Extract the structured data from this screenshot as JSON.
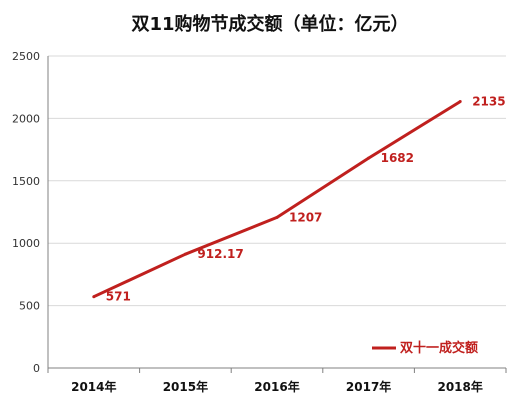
{
  "colors": {
    "series": "#c0201e",
    "grid": "#d9d9d9",
    "axis": "#808080"
  },
  "chart_data": {
    "type": "line",
    "title": "双11购物节成交额（单位：亿元）",
    "categories": [
      "2014年",
      "2015年",
      "2016年",
      "2017年",
      "2018年"
    ],
    "series": [
      {
        "name": "双十一成交额",
        "values": [
          571,
          912.17,
          1207,
          1682,
          2135
        ]
      }
    ],
    "data_labels": [
      "571",
      "912.17",
      "1207",
      "1682",
      "2135"
    ],
    "y_ticks": [
      0,
      500,
      1000,
      1500,
      2000,
      2500
    ],
    "ylim": [
      0,
      2500
    ],
    "xlabel": "",
    "ylabel": "",
    "grid": "horizontal",
    "legend_position": "bottom-right"
  }
}
